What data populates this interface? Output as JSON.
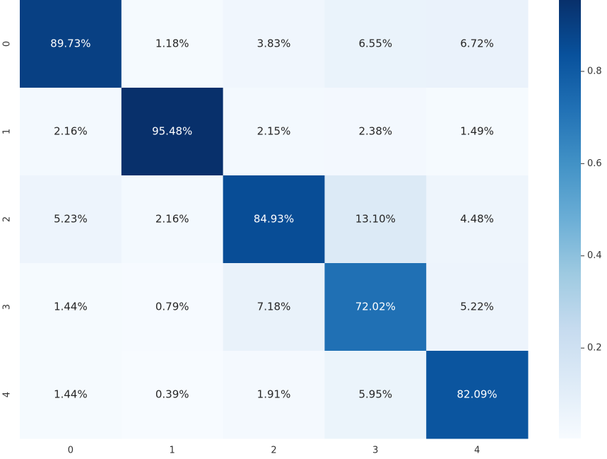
{
  "chart_data": {
    "type": "heatmap",
    "colormap": "Blues",
    "x_categories": [
      "0",
      "1",
      "2",
      "3",
      "4"
    ],
    "y_categories": [
      "0",
      "1",
      "2",
      "3",
      "4"
    ],
    "values": [
      [
        0.8973,
        0.0118,
        0.0383,
        0.0655,
        0.0672
      ],
      [
        0.0216,
        0.9548,
        0.0215,
        0.0238,
        0.0149
      ],
      [
        0.0523,
        0.0216,
        0.8493,
        0.131,
        0.0448
      ],
      [
        0.0144,
        0.0079,
        0.0718,
        0.7202,
        0.0522
      ],
      [
        0.0144,
        0.0039,
        0.0191,
        0.0595,
        0.8209
      ]
    ],
    "value_labels": [
      [
        "89.73%",
        "1.18%",
        "3.83%",
        "6.55%",
        "6.72%"
      ],
      [
        "2.16%",
        "95.48%",
        "2.15%",
        "2.38%",
        "1.49%"
      ],
      [
        "5.23%",
        "2.16%",
        "84.93%",
        "13.10%",
        "4.48%"
      ],
      [
        "1.44%",
        "0.79%",
        "7.18%",
        "72.02%",
        "5.22%"
      ],
      [
        "1.44%",
        "0.39%",
        "1.91%",
        "5.95%",
        "82.09%"
      ]
    ],
    "clim": [
      0.0039,
      0.9548
    ],
    "cticks": [
      0.2,
      0.4,
      0.6,
      0.8
    ]
  }
}
